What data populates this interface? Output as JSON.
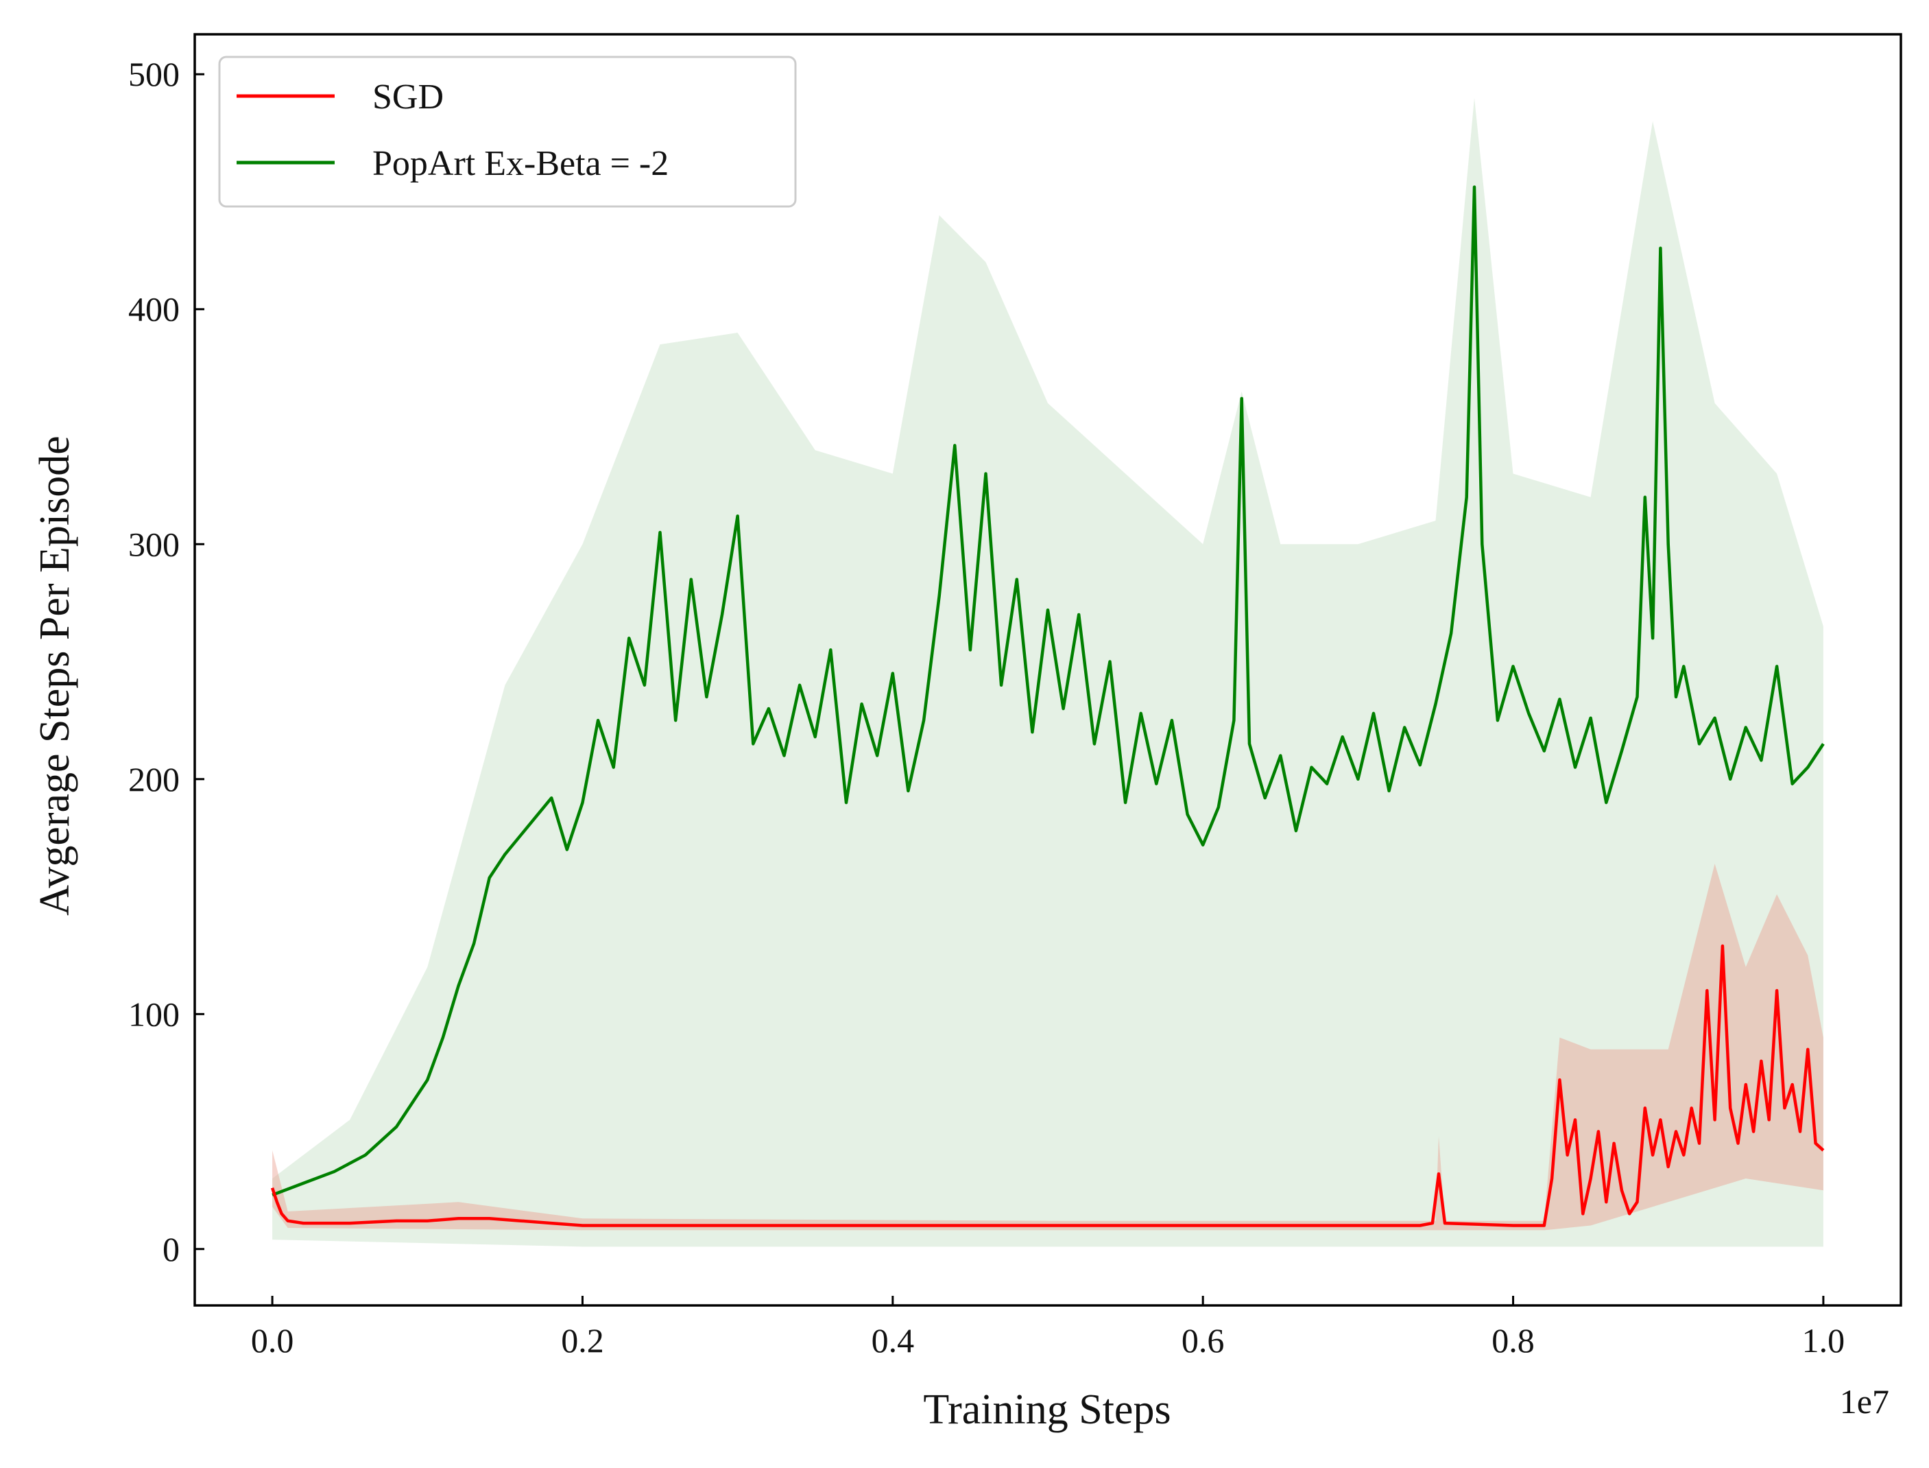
{
  "chart_data": {
    "type": "line",
    "title": "",
    "xlabel": "Training Steps",
    "ylabel": "Avgerage Steps Per Episode",
    "x_offset_label": "1e7",
    "xlim": [
      -0.05,
      1.05
    ],
    "ylim": [
      -24,
      517
    ],
    "xticks": [
      0.0,
      0.2,
      0.4,
      0.6,
      0.8,
      1.0
    ],
    "xtick_labels": [
      "0.0",
      "0.2",
      "0.4",
      "0.6",
      "0.8",
      "1.0"
    ],
    "yticks": [
      0,
      100,
      200,
      300,
      400,
      500
    ],
    "ytick_labels": [
      "0",
      "100",
      "200",
      "300",
      "400",
      "500"
    ],
    "grid": false,
    "legend_position": "top-left",
    "series": [
      {
        "name": "SGD",
        "color": "#ff0000",
        "band_color": "#e8a090",
        "points": [
          [
            0.0,
            26
          ],
          [
            0.003,
            20
          ],
          [
            0.006,
            15
          ],
          [
            0.01,
            12
          ],
          [
            0.02,
            11
          ],
          [
            0.05,
            11
          ],
          [
            0.08,
            12
          ],
          [
            0.1,
            12
          ],
          [
            0.12,
            13
          ],
          [
            0.14,
            13
          ],
          [
            0.16,
            12
          ],
          [
            0.18,
            11
          ],
          [
            0.2,
            10
          ],
          [
            0.3,
            10
          ],
          [
            0.4,
            10
          ],
          [
            0.5,
            10
          ],
          [
            0.6,
            10
          ],
          [
            0.7,
            10
          ],
          [
            0.74,
            10
          ],
          [
            0.748,
            11
          ],
          [
            0.752,
            32
          ],
          [
            0.756,
            11
          ],
          [
            0.8,
            10
          ],
          [
            0.82,
            10
          ],
          [
            0.825,
            30
          ],
          [
            0.83,
            72
          ],
          [
            0.835,
            40
          ],
          [
            0.84,
            55
          ],
          [
            0.845,
            15
          ],
          [
            0.85,
            30
          ],
          [
            0.855,
            50
          ],
          [
            0.86,
            20
          ],
          [
            0.865,
            45
          ],
          [
            0.87,
            25
          ],
          [
            0.875,
            15
          ],
          [
            0.88,
            20
          ],
          [
            0.885,
            60
          ],
          [
            0.89,
            40
          ],
          [
            0.895,
            55
          ],
          [
            0.9,
            35
          ],
          [
            0.905,
            50
          ],
          [
            0.91,
            40
          ],
          [
            0.915,
            60
          ],
          [
            0.92,
            45
          ],
          [
            0.925,
            110
          ],
          [
            0.93,
            55
          ],
          [
            0.935,
            129
          ],
          [
            0.94,
            60
          ],
          [
            0.945,
            45
          ],
          [
            0.95,
            70
          ],
          [
            0.955,
            50
          ],
          [
            0.96,
            80
          ],
          [
            0.965,
            55
          ],
          [
            0.97,
            110
          ],
          [
            0.975,
            60
          ],
          [
            0.98,
            70
          ],
          [
            0.985,
            50
          ],
          [
            0.99,
            85
          ],
          [
            0.995,
            45
          ],
          [
            1.0,
            42
          ]
        ],
        "band_lower": [
          [
            0.0,
            18
          ],
          [
            0.01,
            9
          ],
          [
            0.2,
            8
          ],
          [
            0.5,
            8
          ],
          [
            0.8,
            8
          ],
          [
            0.82,
            8
          ],
          [
            0.85,
            10
          ],
          [
            0.9,
            20
          ],
          [
            0.95,
            30
          ],
          [
            1.0,
            25
          ]
        ],
        "band_upper": [
          [
            0.0,
            42
          ],
          [
            0.01,
            16
          ],
          [
            0.12,
            20
          ],
          [
            0.2,
            13
          ],
          [
            0.5,
            12
          ],
          [
            0.75,
            12
          ],
          [
            0.752,
            48
          ],
          [
            0.756,
            12
          ],
          [
            0.82,
            12
          ],
          [
            0.83,
            90
          ],
          [
            0.85,
            85
          ],
          [
            0.9,
            85
          ],
          [
            0.93,
            164
          ],
          [
            0.95,
            120
          ],
          [
            0.97,
            151
          ],
          [
            0.99,
            125
          ],
          [
            1.0,
            90
          ]
        ]
      },
      {
        "name": "PopArt Ex-Beta = -2",
        "color": "#008000",
        "band_color": "#cfe6cf",
        "points": [
          [
            0.0,
            23
          ],
          [
            0.02,
            28
          ],
          [
            0.04,
            33
          ],
          [
            0.06,
            40
          ],
          [
            0.08,
            52
          ],
          [
            0.1,
            72
          ],
          [
            0.11,
            90
          ],
          [
            0.12,
            112
          ],
          [
            0.13,
            130
          ],
          [
            0.14,
            158
          ],
          [
            0.15,
            168
          ],
          [
            0.16,
            176
          ],
          [
            0.17,
            184
          ],
          [
            0.18,
            192
          ],
          [
            0.19,
            170
          ],
          [
            0.2,
            190
          ],
          [
            0.21,
            225
          ],
          [
            0.22,
            205
          ],
          [
            0.23,
            260
          ],
          [
            0.24,
            240
          ],
          [
            0.25,
            305
          ],
          [
            0.26,
            225
          ],
          [
            0.27,
            285
          ],
          [
            0.28,
            235
          ],
          [
            0.29,
            270
          ],
          [
            0.3,
            312
          ],
          [
            0.31,
            215
          ],
          [
            0.32,
            230
          ],
          [
            0.33,
            210
          ],
          [
            0.34,
            240
          ],
          [
            0.35,
            218
          ],
          [
            0.36,
            255
          ],
          [
            0.37,
            190
          ],
          [
            0.38,
            232
          ],
          [
            0.39,
            210
          ],
          [
            0.4,
            245
          ],
          [
            0.41,
            195
          ],
          [
            0.42,
            225
          ],
          [
            0.43,
            278
          ],
          [
            0.44,
            342
          ],
          [
            0.45,
            255
          ],
          [
            0.46,
            330
          ],
          [
            0.47,
            240
          ],
          [
            0.48,
            285
          ],
          [
            0.49,
            220
          ],
          [
            0.5,
            272
          ],
          [
            0.51,
            230
          ],
          [
            0.52,
            270
          ],
          [
            0.53,
            215
          ],
          [
            0.54,
            250
          ],
          [
            0.55,
            190
          ],
          [
            0.56,
            228
          ],
          [
            0.57,
            198
          ],
          [
            0.58,
            225
          ],
          [
            0.59,
            185
          ],
          [
            0.6,
            172
          ],
          [
            0.61,
            188
          ],
          [
            0.62,
            225
          ],
          [
            0.625,
            362
          ],
          [
            0.63,
            215
          ],
          [
            0.64,
            192
          ],
          [
            0.65,
            210
          ],
          [
            0.66,
            178
          ],
          [
            0.67,
            205
          ],
          [
            0.68,
            198
          ],
          [
            0.69,
            218
          ],
          [
            0.7,
            200
          ],
          [
            0.71,
            228
          ],
          [
            0.72,
            195
          ],
          [
            0.73,
            222
          ],
          [
            0.74,
            206
          ],
          [
            0.75,
            232
          ],
          [
            0.76,
            262
          ],
          [
            0.77,
            320
          ],
          [
            0.775,
            452
          ],
          [
            0.78,
            300
          ],
          [
            0.79,
            225
          ],
          [
            0.8,
            248
          ],
          [
            0.81,
            228
          ],
          [
            0.82,
            212
          ],
          [
            0.83,
            234
          ],
          [
            0.84,
            205
          ],
          [
            0.85,
            226
          ],
          [
            0.86,
            190
          ],
          [
            0.87,
            212
          ],
          [
            0.88,
            235
          ],
          [
            0.885,
            320
          ],
          [
            0.89,
            260
          ],
          [
            0.895,
            426
          ],
          [
            0.9,
            300
          ],
          [
            0.905,
            235
          ],
          [
            0.91,
            248
          ],
          [
            0.92,
            215
          ],
          [
            0.93,
            226
          ],
          [
            0.94,
            200
          ],
          [
            0.95,
            222
          ],
          [
            0.96,
            208
          ],
          [
            0.97,
            248
          ],
          [
            0.98,
            198
          ],
          [
            0.99,
            205
          ],
          [
            1.0,
            215
          ]
        ],
        "band_lower": [
          [
            0.0,
            4
          ],
          [
            0.2,
            1
          ],
          [
            0.5,
            1
          ],
          [
            0.8,
            1
          ],
          [
            1.0,
            1
          ]
        ],
        "band_upper": [
          [
            0.0,
            30
          ],
          [
            0.05,
            55
          ],
          [
            0.1,
            120
          ],
          [
            0.15,
            240
          ],
          [
            0.2,
            300
          ],
          [
            0.25,
            385
          ],
          [
            0.3,
            390
          ],
          [
            0.35,
            340
          ],
          [
            0.4,
            330
          ],
          [
            0.43,
            440
          ],
          [
            0.46,
            420
          ],
          [
            0.5,
            360
          ],
          [
            0.55,
            330
          ],
          [
            0.6,
            300
          ],
          [
            0.625,
            365
          ],
          [
            0.65,
            300
          ],
          [
            0.7,
            300
          ],
          [
            0.75,
            310
          ],
          [
            0.775,
            490
          ],
          [
            0.8,
            330
          ],
          [
            0.85,
            320
          ],
          [
            0.89,
            480
          ],
          [
            0.93,
            360
          ],
          [
            0.97,
            330
          ],
          [
            1.0,
            265
          ]
        ]
      }
    ]
  }
}
